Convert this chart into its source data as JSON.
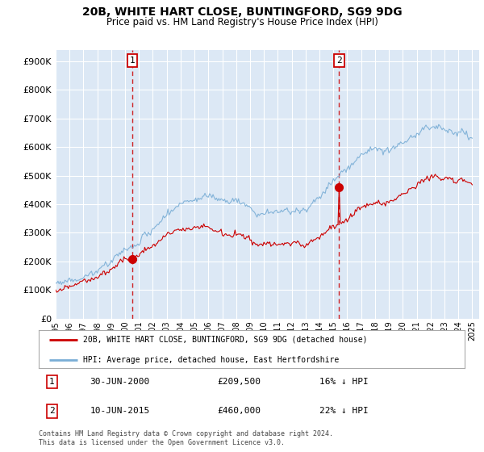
{
  "title": "20B, WHITE HART CLOSE, BUNTINGFORD, SG9 9DG",
  "subtitle": "Price paid vs. HM Land Registry's House Price Index (HPI)",
  "ytick_values": [
    0,
    100000,
    200000,
    300000,
    400000,
    500000,
    600000,
    700000,
    800000,
    900000
  ],
  "ylim": [
    0,
    940000
  ],
  "xmin_year": 1995,
  "xmax_year": 2025.5,
  "transaction1_date": 2000.5,
  "transaction1_price": 209500,
  "transaction1_label": "30-JUN-2000",
  "transaction1_pct": "16% ↓ HPI",
  "transaction2_date": 2015.45,
  "transaction2_price": 460000,
  "transaction2_label": "10-JUN-2015",
  "transaction2_pct": "22% ↓ HPI",
  "property_legend": "20B, WHITE HART CLOSE, BUNTINGFORD, SG9 9DG (detached house)",
  "hpi_legend": "HPI: Average price, detached house, East Hertfordshire",
  "property_color": "#cc0000",
  "hpi_color": "#7aaed6",
  "bg_plot": "#dce8f5",
  "bg_figure": "#ffffff",
  "grid_color": "#ffffff",
  "dashed_color": "#cc0000",
  "footnote": "Contains HM Land Registry data © Crown copyright and database right 2024.\nThis data is licensed under the Open Government Licence v3.0.",
  "xtick_years": [
    1995,
    1996,
    1997,
    1998,
    1999,
    2000,
    2001,
    2002,
    2003,
    2004,
    2005,
    2006,
    2007,
    2008,
    2009,
    2010,
    2011,
    2012,
    2013,
    2014,
    2015,
    2016,
    2017,
    2018,
    2019,
    2020,
    2021,
    2022,
    2023,
    2024,
    2025
  ]
}
